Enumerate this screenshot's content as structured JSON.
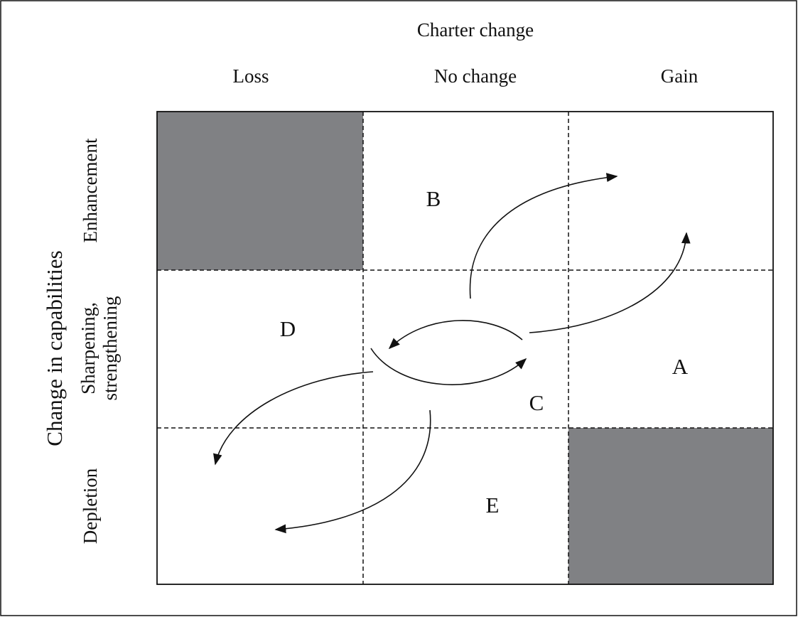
{
  "x_axis": {
    "title": "Charter change",
    "columns": [
      "Loss",
      "No change",
      "Gain"
    ]
  },
  "y_axis": {
    "title": "Change in capabilities",
    "rows": [
      [
        "Enhancement"
      ],
      [
        "Sharpening,",
        "strengthening"
      ],
      [
        "Depletion"
      ]
    ]
  },
  "cells": [
    {
      "label": "A"
    },
    {
      "label": "B"
    },
    {
      "label": "C"
    },
    {
      "label": "D"
    },
    {
      "label": "E"
    }
  ]
}
